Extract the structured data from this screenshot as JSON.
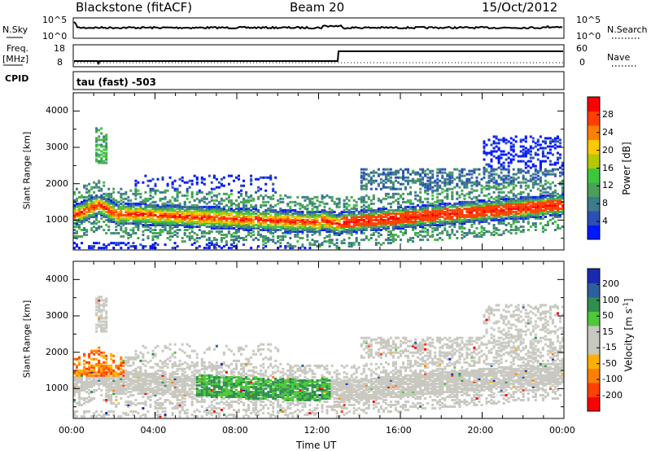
{
  "header": {
    "station": "Blackstone (fitACF)",
    "beam": "Beam 20",
    "date": "15/Oct/2012"
  },
  "top_panels": {
    "nsky_label": "N.Sky",
    "nsearch_label": "N.Search",
    "nsky_ticks": [
      "10^5",
      "10^0"
    ],
    "nsearch_ticks": [
      "10^5",
      "10^0"
    ],
    "freq_label_1": "Freq.",
    "freq_label_2": "[MHz]",
    "freq_ticks": [
      "18",
      "8"
    ],
    "nave_label": "Nave",
    "nave_ticks": [
      "60",
      "0"
    ],
    "cpid_label": "CPID",
    "cpid_text": "tau (fast) -503"
  },
  "chart_data": [
    {
      "type": "heatmap",
      "name": "power",
      "ylabel": "Slant Range [km]",
      "xlabel": "",
      "ylim": [
        180,
        4500
      ],
      "xlim_hours": [
        0,
        24
      ],
      "yticks": [
        "1000",
        "2000",
        "3000",
        "4000"
      ],
      "xticks": [
        "00:00",
        "04:00",
        "08:00",
        "12:00",
        "16:00",
        "20:00",
        "00:00"
      ],
      "colorbar": {
        "label": "Power [dB]",
        "ticks": [
          "4",
          "8",
          "12",
          "16",
          "20",
          "24",
          "28"
        ],
        "colors": [
          "#0018ff",
          "#2a4fb5",
          "#3c7a8c",
          "#4aa05a",
          "#3cc83c",
          "#b5c800",
          "#ffc800",
          "#ff8000",
          "#ff4000",
          "#ff0000"
        ]
      }
    },
    {
      "type": "heatmap",
      "name": "velocity",
      "ylabel": "Slant Range [km]",
      "xlabel": "Time UT",
      "ylim": [
        180,
        4500
      ],
      "xlim_hours": [
        0,
        24
      ],
      "yticks": [
        "1000",
        "2000",
        "3000",
        "4000"
      ],
      "xticks": [
        "00:00",
        "04:00",
        "08:00",
        "12:00",
        "16:00",
        "20:00",
        "00:00"
      ],
      "colorbar": {
        "label": "Velocity [m s",
        "label_sup": "-1",
        "label_end": "]",
        "ticks": [
          "200",
          "100",
          "50",
          "15",
          "-15",
          "-50",
          "-100",
          "-200"
        ],
        "colors": [
          "#1a2ab0",
          "#2c5f9e",
          "#2f8f50",
          "#4fc83a",
          "#c8c8c0",
          "#c8c8c0",
          "#ffb000",
          "#ff8000",
          "#ff4000",
          "#ff0000"
        ]
      }
    }
  ]
}
